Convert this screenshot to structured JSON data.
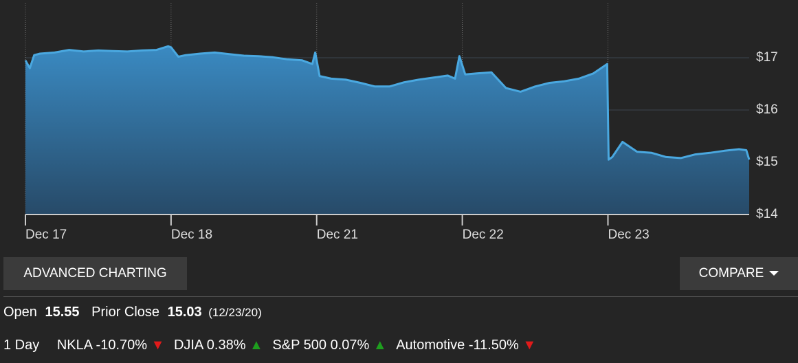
{
  "chart_data": {
    "type": "area",
    "x": [
      0,
      0.03,
      0.06,
      0.1,
      0.2,
      0.3,
      0.4,
      0.5,
      0.6,
      0.7,
      0.8,
      0.9,
      0.98,
      1.0,
      1.05,
      1.1,
      1.2,
      1.3,
      1.4,
      1.5,
      1.6,
      1.7,
      1.8,
      1.9,
      1.97,
      1.99,
      2.02,
      2.1,
      2.2,
      2.3,
      2.4,
      2.5,
      2.6,
      2.7,
      2.8,
      2.9,
      2.95,
      2.98,
      3.02,
      3.1,
      3.2,
      3.3,
      3.4,
      3.5,
      3.6,
      3.7,
      3.8,
      3.9,
      3.995,
      4.005,
      4.03,
      4.1,
      4.2,
      4.3,
      4.4,
      4.5,
      4.6,
      4.7,
      4.8,
      4.9,
      4.95,
      4.97
    ],
    "series": [
      {
        "color": "#4aa8e0",
        "values": [
          16.95,
          16.8,
          17.05,
          17.08,
          17.1,
          17.15,
          17.12,
          17.14,
          17.13,
          17.12,
          17.14,
          17.15,
          17.22,
          17.2,
          17.02,
          17.05,
          17.08,
          17.1,
          17.07,
          17.04,
          17.03,
          17.01,
          16.97,
          16.95,
          16.88,
          17.1,
          16.65,
          16.6,
          16.58,
          16.52,
          16.45,
          16.45,
          16.53,
          16.58,
          16.62,
          16.66,
          16.6,
          17.03,
          16.68,
          16.7,
          16.72,
          16.42,
          16.35,
          16.45,
          16.52,
          16.55,
          16.6,
          16.7,
          16.88,
          15.05,
          15.1,
          15.39,
          15.2,
          15.18,
          15.1,
          15.08,
          15.15,
          15.18,
          15.22,
          15.25,
          15.23,
          15.05
        ]
      }
    ],
    "xlim": [
      0,
      4.97
    ],
    "xticks": [
      {
        "value": 0,
        "label": "Dec 17"
      },
      {
        "value": 1,
        "label": "Dec 18"
      },
      {
        "value": 2,
        "label": "Dec 21"
      },
      {
        "value": 3,
        "label": "Dec 22"
      },
      {
        "value": 4,
        "label": "Dec 23"
      }
    ],
    "ylim": [
      14,
      18.04
    ],
    "yticks": [
      {
        "value": 14,
        "label": "$14"
      },
      {
        "value": 15,
        "label": "$15"
      },
      {
        "value": 16,
        "label": "$16"
      },
      {
        "value": 17,
        "label": "$17"
      }
    ],
    "grid": true
  },
  "buttons": {
    "advanced": "ADVANCED CHARTING",
    "compare": "COMPARE"
  },
  "quote": {
    "open_label": "Open",
    "open": 15.55,
    "prior_close_label": "Prior Close",
    "prior_close": 15.03,
    "prior_close_date": "(12/23/20)"
  },
  "performance": {
    "period": "1 Day",
    "items": [
      {
        "name": "NKLA",
        "change": "-10.70%"
      },
      {
        "name": "DJIA",
        "change": "0.38%"
      },
      {
        "name": "S&P 500",
        "change": "0.07%"
      },
      {
        "name": "Automotive",
        "change": "-11.50%"
      }
    ]
  }
}
